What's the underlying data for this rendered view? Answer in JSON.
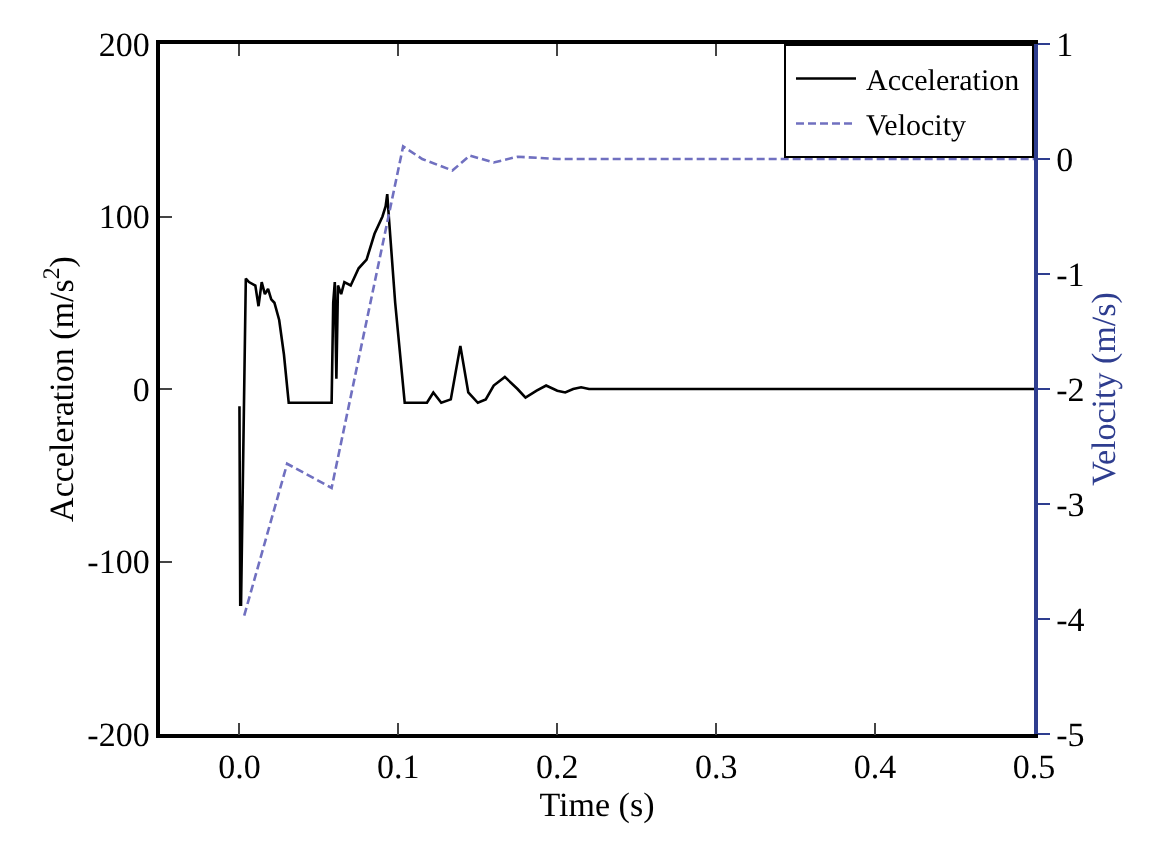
{
  "chart_data": {
    "type": "line",
    "xlabel": "Time (s)",
    "ylabel": "Acceleration (m/s$^{2}$)",
    "y2label": "Velocity (m/s)",
    "xlim": [
      -0.05,
      0.5
    ],
    "xticks": [
      {
        "value": 0,
        "label": "0.0"
      },
      0.1,
      0.2,
      0.3,
      0.4,
      0.5
    ],
    "ylim": [
      -200,
      200
    ],
    "yticks": [
      -200,
      -100,
      0,
      100,
      200
    ],
    "y2lim": [
      -5,
      1
    ],
    "y2ticks": [
      -5,
      -4,
      -3,
      -2,
      -1,
      0,
      1
    ],
    "grid": false,
    "legend": "top right",
    "marker": "none",
    "series": [
      {
        "name": "Acceleration",
        "color": "#000000",
        "line_style": "solid",
        "x": [
          0,
          0.0005,
          0.001,
          0.004,
          0.006,
          0.01,
          0.012,
          0.014,
          0.016,
          0.018,
          0.02,
          0.022,
          0.025,
          0.028,
          0.031,
          0.04,
          0.05,
          0.058,
          0.059,
          0.06,
          0.061,
          0.062,
          0.064,
          0.066,
          0.07,
          0.075,
          0.08,
          0.085,
          0.09,
          0.092,
          0.093,
          0.094,
          0.098,
          0.104,
          0.11,
          0.118,
          0.122,
          0.127,
          0.133,
          0.139,
          0.144,
          0.15,
          0.155,
          0.16,
          0.167,
          0.175,
          0.18,
          0.187,
          0.193,
          0.2,
          0.205,
          0.21,
          0.215,
          0.22,
          0.25,
          0.3,
          0.4,
          0.5
        ],
        "values": [
          -10,
          -125,
          -125,
          64,
          62,
          60,
          48,
          62,
          55,
          58,
          52,
          50,
          40,
          20,
          -8,
          -8,
          -8,
          -8,
          50,
          62,
          6,
          60,
          55,
          62,
          60,
          70,
          75,
          90,
          100,
          106,
          113,
          100,
          50,
          -8,
          -8,
          -8,
          -2,
          -8,
          -6,
          25,
          -2,
          -8,
          -6,
          2,
          7,
          0,
          -5,
          -1,
          2,
          -1,
          -2,
          0,
          1,
          0,
          0,
          0,
          0,
          0
        ]
      },
      {
        "name": "Velocity",
        "color": "#7070c0",
        "line_style": "dashed",
        "axis": "y2",
        "x": [
          0.003,
          0.03,
          0.058,
          0.103,
          0.115,
          0.134,
          0.145,
          0.16,
          0.175,
          0.2,
          0.3,
          0.4,
          0.5
        ],
        "values": [
          -3.97,
          -2.65,
          -2.86,
          0.11,
          0,
          -0.1,
          0.03,
          -0.03,
          0.02,
          0,
          0,
          0,
          0
        ]
      }
    ]
  }
}
